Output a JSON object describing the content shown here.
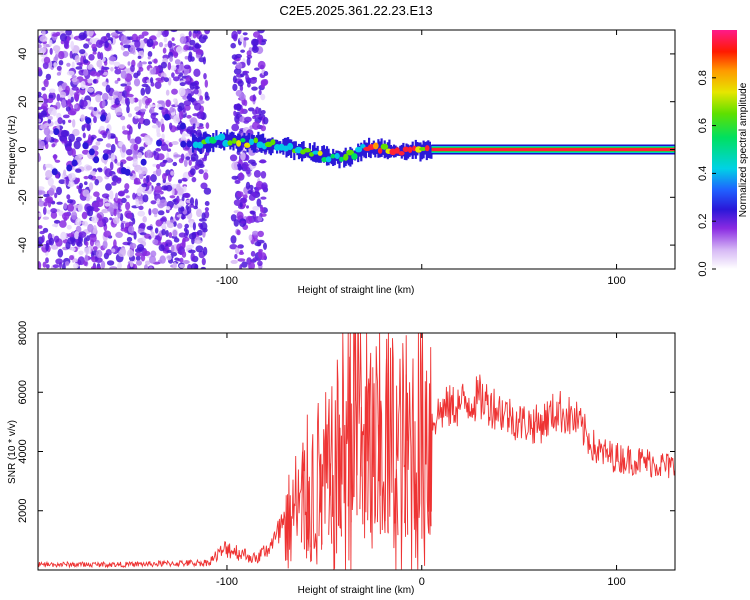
{
  "figure_title": "C2E5.2025.361.22.23.E13",
  "chart_data": [
    {
      "type": "heatmap",
      "title": "C2E5.2025.361.22.23.E13",
      "xlabel": "Height of straight line (km)",
      "ylabel": "Frequency (Hz)",
      "xlim": [
        -197,
        130
      ],
      "ylim": [
        -50,
        50
      ],
      "x_ticks": [
        -100,
        0,
        100
      ],
      "x_tick_labels": [
        "-100",
        "",
        "100"
      ],
      "y_ticks": [
        40,
        20,
        0,
        -20,
        -40
      ],
      "y_tick_labels": [
        "40",
        "20",
        "0",
        "-20",
        "-40"
      ],
      "colorbar": {
        "label": "Normalized spectral amplitude",
        "range": [
          0,
          1
        ],
        "ticks": [
          0.0,
          0.2,
          0.4,
          0.6,
          0.8
        ],
        "tick_labels": [
          "0.0",
          "0.2",
          "0.4",
          "0.6",
          "0.8"
        ]
      },
      "features": {
        "noise_band_x": [
          -197,
          -118
        ],
        "noise_gap_x": [
          -110,
          -97
        ],
        "noise_stripe_x": [
          -97,
          -80
        ],
        "signal_line": {
          "x": [
            -118,
            -100,
            -85,
            -70,
            -60,
            -50,
            -40,
            -35,
            -30,
            -20,
            -10,
            0,
            130
          ],
          "y": [
            3,
            4,
            3,
            1,
            -1,
            -3,
            -4,
            -2,
            0,
            0,
            -1,
            0,
            0
          ]
        }
      }
    },
    {
      "type": "line",
      "xlabel": "Height of straight line (km)",
      "ylabel": "SNR (10 * v/v)",
      "xlim": [
        -197,
        130
      ],
      "ylim": [
        0,
        8000
      ],
      "x_ticks": [
        -100,
        0,
        100
      ],
      "x_tick_labels": [
        "-100",
        "0",
        "100"
      ],
      "y_ticks": [
        2000,
        4000,
        6000,
        8000
      ],
      "y_tick_labels": [
        "2000",
        "4000",
        "6000",
        "8000"
      ],
      "series": [
        {
          "name": "SNR",
          "color": "#ee3333",
          "x": [
            -197,
            -150,
            -110,
            -100,
            -95,
            -85,
            -75,
            -65,
            -55,
            -45,
            -38,
            -35,
            -30,
            -25,
            -20,
            -10,
            0,
            10,
            20,
            30,
            40,
            50,
            60,
            70,
            80,
            90,
            100,
            110,
            120,
            130
          ],
          "y": [
            150,
            150,
            200,
            600,
            500,
            300,
            800,
            2000,
            2800,
            3000,
            4800,
            6500,
            4800,
            3800,
            4200,
            3800,
            4600,
            5400,
            5600,
            5800,
            5400,
            5000,
            4900,
            5400,
            5000,
            4000,
            3800,
            3700,
            3600,
            3450
          ],
          "spikes": [
            {
              "x": -61,
              "y": 4300
            },
            {
              "x": -58,
              "y": 3000
            },
            {
              "x": -52,
              "y": 3900
            },
            {
              "x": -47,
              "y": 3600
            },
            {
              "x": -42,
              "y": 4800
            },
            {
              "x": -37,
              "y": 7200
            },
            {
              "x": -34,
              "y": 8000
            },
            {
              "x": -31,
              "y": 5500
            },
            {
              "x": -27,
              "y": 6300
            },
            {
              "x": -22,
              "y": 4900
            },
            {
              "x": -18,
              "y": 7800
            },
            {
              "x": -13,
              "y": 3400
            },
            {
              "x": -8,
              "y": 6600
            },
            {
              "x": -3,
              "y": 2900
            },
            {
              "x": 4,
              "y": 6300
            }
          ]
        }
      ]
    }
  ]
}
